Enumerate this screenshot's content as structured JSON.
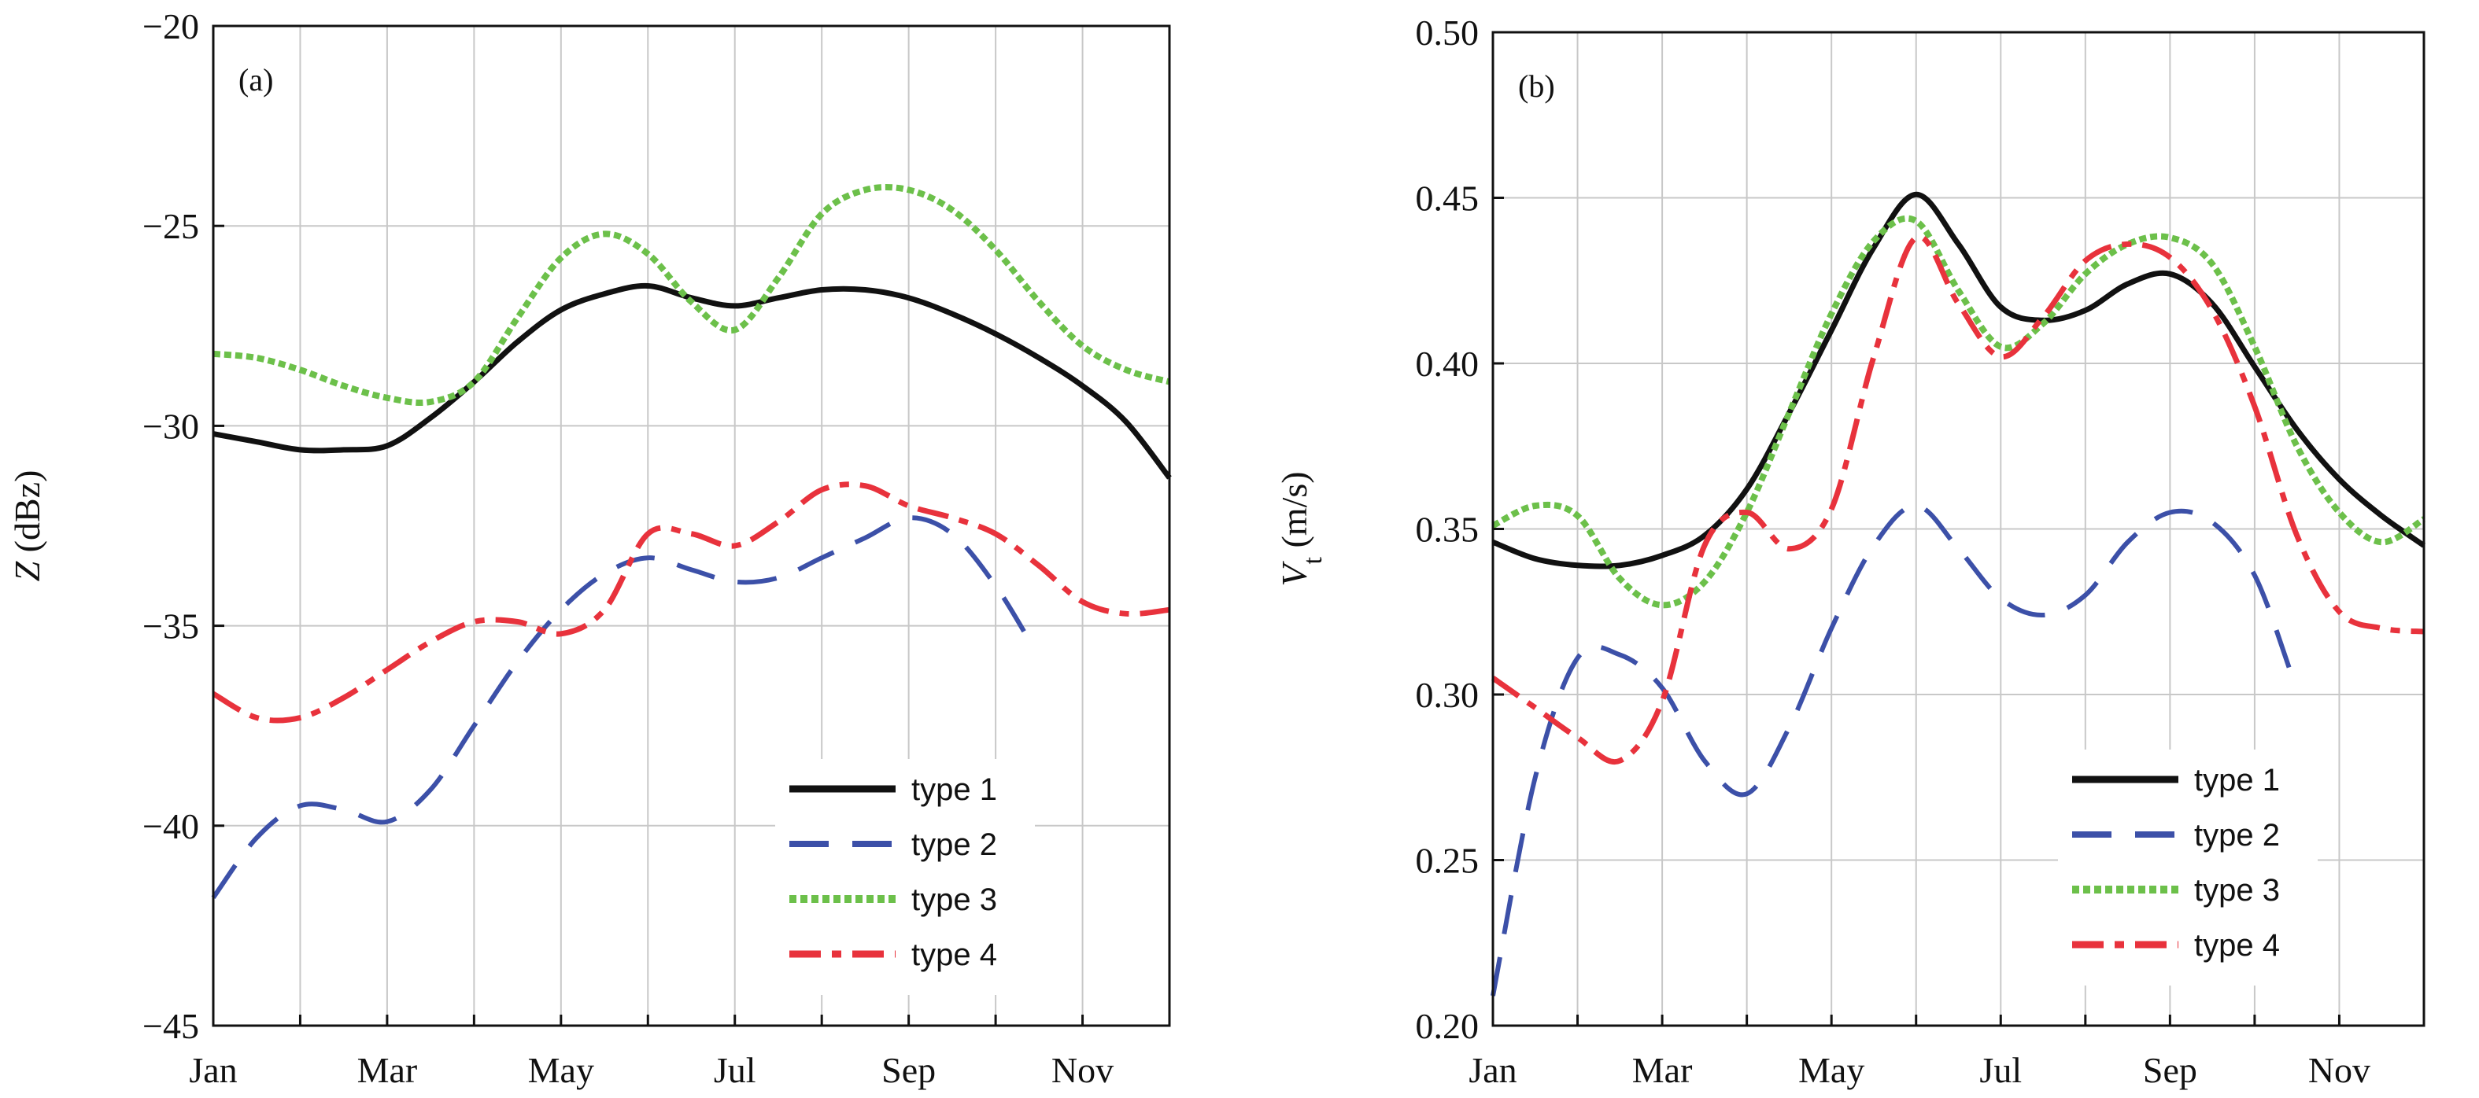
{
  "chart_data": [
    {
      "type": "line",
      "panel_label": "(a)",
      "ylabel": "Z (dBz)",
      "ylabel_var": "Z",
      "ylabel_unit": " (dBz)",
      "xlabel": "",
      "xlim": [
        1,
        12
      ],
      "x_tick_positions": [
        1,
        3,
        5,
        7,
        9,
        11
      ],
      "x_tick_labels": [
        "Jan",
        "Mar",
        "May",
        "Jul",
        "Sep",
        "Nov"
      ],
      "ylim": [
        -45,
        -20
      ],
      "y_ticks": [
        -45,
        -40,
        -35,
        -30,
        -25,
        -20
      ],
      "y_tick_labels": [
        "−45",
        "−40",
        "−35",
        "−30",
        "−25",
        "−20"
      ],
      "grid": true,
      "legend_position": "bottom-right",
      "series": [
        {
          "name": "type 1",
          "color": "#111111",
          "style": "solid",
          "x": [
            1,
            1.5,
            2,
            2.5,
            3,
            3.5,
            4,
            4.5,
            5,
            5.5,
            6,
            6.5,
            7,
            7.5,
            8,
            8.5,
            9,
            9.5,
            10,
            10.5,
            11,
            11.5,
            12
          ],
          "y": [
            -30.2,
            -30.4,
            -30.6,
            -30.6,
            -30.5,
            -29.8,
            -28.9,
            -27.9,
            -27.1,
            -26.7,
            -26.5,
            -26.8,
            -27.0,
            -26.8,
            -26.6,
            -26.6,
            -26.8,
            -27.2,
            -27.7,
            -28.3,
            -29.0,
            -29.9,
            -31.3
          ]
        },
        {
          "name": "type 2",
          "color": "#3c50a8",
          "style": "dashed",
          "x": [
            1,
            1.5,
            2,
            2.5,
            3,
            3.5,
            4,
            4.5,
            5,
            5.5,
            6,
            6.5,
            7,
            7.5,
            8,
            8.5,
            9,
            9.5,
            10,
            10.45
          ],
          "y": [
            -41.8,
            -40.3,
            -39.5,
            -39.6,
            -39.9,
            -39.1,
            -37.5,
            -35.9,
            -34.6,
            -33.7,
            -33.3,
            -33.6,
            -33.9,
            -33.8,
            -33.3,
            -32.8,
            -32.3,
            -32.7,
            -34.0,
            -35.6
          ]
        },
        {
          "name": "type 3",
          "color": "#6cc04a",
          "style": "dotted",
          "x": [
            1,
            1.5,
            2,
            2.5,
            3,
            3.5,
            4,
            4.5,
            5,
            5.5,
            6,
            6.5,
            7,
            7.5,
            8,
            8.5,
            9,
            9.5,
            10,
            10.5,
            11,
            11.5,
            12
          ],
          "y": [
            -28.2,
            -28.3,
            -28.6,
            -29.0,
            -29.3,
            -29.4,
            -28.9,
            -27.3,
            -25.8,
            -25.2,
            -25.7,
            -26.9,
            -27.6,
            -26.3,
            -24.7,
            -24.1,
            -24.1,
            -24.6,
            -25.6,
            -26.9,
            -28.0,
            -28.6,
            -28.9
          ]
        },
        {
          "name": "type 4",
          "color": "#e8323c",
          "style": "dashdot",
          "x": [
            1,
            1.5,
            2,
            2.5,
            3,
            3.5,
            4,
            4.5,
            5,
            5.5,
            6,
            6.5,
            7,
            7.5,
            8,
            8.5,
            9,
            9.5,
            10,
            10.5,
            11,
            11.5,
            12
          ],
          "y": [
            -36.7,
            -37.3,
            -37.3,
            -36.8,
            -36.1,
            -35.4,
            -34.9,
            -34.9,
            -35.2,
            -34.6,
            -32.7,
            -32.7,
            -33.0,
            -32.4,
            -31.6,
            -31.5,
            -32.0,
            -32.3,
            -32.7,
            -33.5,
            -34.4,
            -34.7,
            -34.6
          ]
        }
      ]
    },
    {
      "type": "line",
      "panel_label": "(b)",
      "ylabel": "Vt (m/s)",
      "ylabel_var": "V",
      "ylabel_sub": "t",
      "ylabel_unit": " (m/s)",
      "xlabel": "",
      "xlim": [
        1,
        12
      ],
      "x_tick_positions": [
        1,
        3,
        5,
        7,
        9,
        11
      ],
      "x_tick_labels": [
        "Jan",
        "Mar",
        "May",
        "Jul",
        "Sep",
        "Nov"
      ],
      "ylim": [
        0.2,
        0.5
      ],
      "y_ticks": [
        0.2,
        0.25,
        0.3,
        0.35,
        0.4,
        0.45,
        0.5
      ],
      "y_tick_labels": [
        "0.20",
        "0.25",
        "0.30",
        "0.35",
        "0.40",
        "0.45",
        "0.50"
      ],
      "grid": true,
      "legend_position": "bottom-right",
      "series": [
        {
          "name": "type 1",
          "color": "#111111",
          "style": "solid",
          "x": [
            1,
            1.5,
            2,
            2.5,
            3,
            3.5,
            4,
            4.5,
            5,
            5.5,
            6,
            6.5,
            7,
            7.5,
            8,
            8.5,
            9,
            9.5,
            10,
            10.5,
            11,
            11.5,
            12
          ],
          "y": [
            0.346,
            0.341,
            0.339,
            0.339,
            0.342,
            0.348,
            0.362,
            0.385,
            0.41,
            0.435,
            0.451,
            0.436,
            0.417,
            0.413,
            0.416,
            0.424,
            0.427,
            0.418,
            0.399,
            0.38,
            0.365,
            0.354,
            0.345
          ]
        },
        {
          "name": "type 2",
          "color": "#3c50a8",
          "style": "dashed",
          "x": [
            1,
            1.5,
            2,
            2.5,
            3,
            3.5,
            4,
            4.5,
            5,
            5.5,
            6,
            6.5,
            7,
            7.5,
            8,
            8.5,
            9,
            9.5,
            10,
            10.45
          ],
          "y": [
            0.209,
            0.275,
            0.311,
            0.312,
            0.302,
            0.28,
            0.27,
            0.29,
            0.32,
            0.345,
            0.357,
            0.344,
            0.329,
            0.324,
            0.33,
            0.346,
            0.355,
            0.352,
            0.336,
            0.305
          ]
        },
        {
          "name": "type 3",
          "color": "#6cc04a",
          "style": "dotted",
          "x": [
            1,
            1.5,
            2,
            2.5,
            3,
            3.5,
            4,
            4.5,
            5,
            5.5,
            6,
            6.5,
            7,
            7.5,
            8,
            8.5,
            9,
            9.5,
            10,
            10.5,
            11,
            11.5,
            12
          ],
          "y": [
            0.351,
            0.357,
            0.354,
            0.335,
            0.327,
            0.334,
            0.355,
            0.385,
            0.415,
            0.437,
            0.443,
            0.422,
            0.405,
            0.412,
            0.427,
            0.436,
            0.438,
            0.43,
            0.405,
            0.375,
            0.355,
            0.346,
            0.353
          ]
        },
        {
          "name": "type 4",
          "color": "#e8323c",
          "style": "dashdot",
          "x": [
            1,
            1.5,
            2,
            2.5,
            3,
            3.5,
            4,
            4.5,
            5,
            5.5,
            6,
            6.5,
            7,
            7.5,
            8,
            8.5,
            9,
            9.5,
            10,
            10.5,
            11,
            11.5,
            12
          ],
          "y": [
            0.305,
            0.296,
            0.287,
            0.28,
            0.298,
            0.345,
            0.355,
            0.344,
            0.356,
            0.402,
            0.438,
            0.418,
            0.402,
            0.414,
            0.431,
            0.436,
            0.432,
            0.416,
            0.387,
            0.348,
            0.325,
            0.32,
            0.319
          ]
        }
      ]
    }
  ]
}
